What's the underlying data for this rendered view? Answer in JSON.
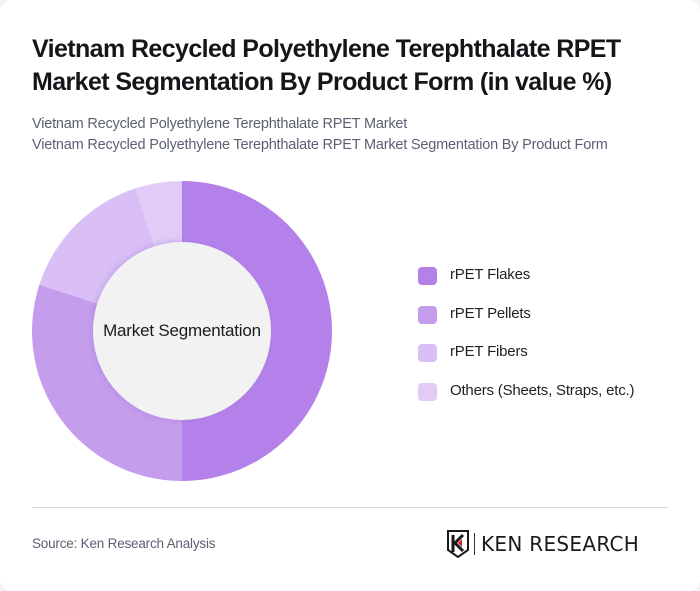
{
  "header": {
    "title": "Vietnam Recycled Polyethylene Terephthalate RPET Market Segmentation By Product Form (in value %)",
    "subtitle_line1": "Vietnam Recycled Polyethylene Terephthalate RPET Market",
    "subtitle_line2": "Vietnam Recycled Polyethylene Terephthalate RPET Market Segmentation By Product Form"
  },
  "chart": {
    "center_label": "Market Segmentation"
  },
  "legend": {
    "items": [
      {
        "label": "rPET Flakes",
        "color": "#b481ea"
      },
      {
        "label": "rPET Pellets",
        "color": "#c59ded"
      },
      {
        "label": "rPET Fibers",
        "color": "#d9bff5"
      },
      {
        "label": "Others (Sheets, Straps, etc.)",
        "color": "#e2ccf7"
      }
    ]
  },
  "footer": {
    "source": "Source: Ken Research Analysis",
    "logo_text": "KEN RESEARCH"
  },
  "chart_data": {
    "type": "pie",
    "title": "Vietnam Recycled Polyethylene Terephthalate RPET Market Segmentation By Product Form (in value %)",
    "subtitle": "Vietnam Recycled Polyethylene Terephthalate RPET Market Segmentation By Product Form",
    "donut": true,
    "center_label": "Market Segmentation",
    "categories": [
      "rPET Flakes",
      "rPET Pellets",
      "rPET Fibers",
      "Others (Sheets, Straps, etc.)"
    ],
    "values": [
      50,
      30,
      15,
      5
    ],
    "colors": [
      "#b481ea",
      "#c59ded",
      "#d9bff5",
      "#e2ccf7"
    ],
    "legend_position": "right",
    "source": "Source: Ken Research Analysis"
  }
}
